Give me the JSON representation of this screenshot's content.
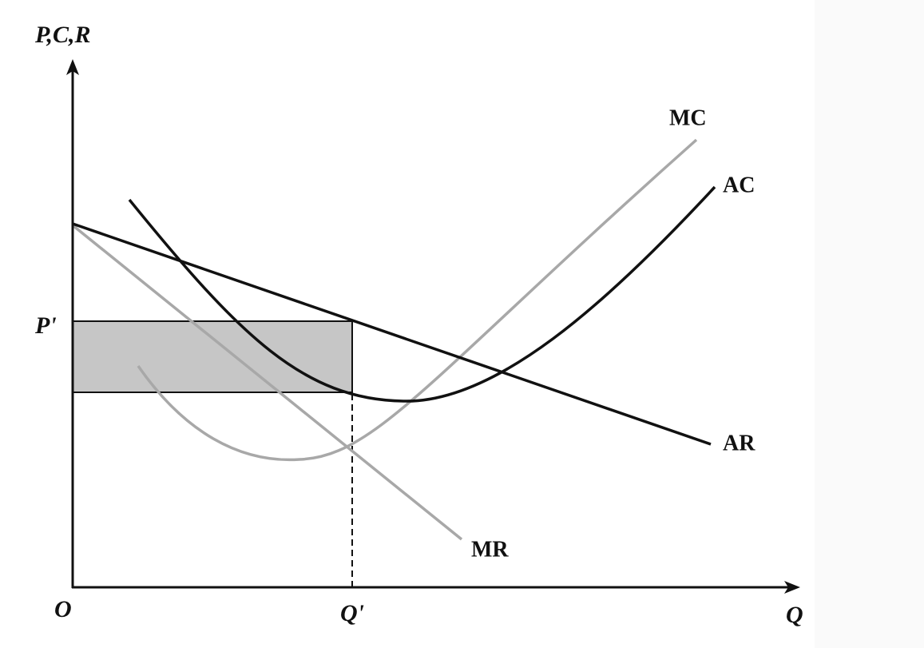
{
  "axes": {
    "y_label": "P,C,R",
    "x_label": "Q",
    "origin": "O"
  },
  "markers": {
    "price": "P'",
    "quantity": "Q'"
  },
  "curves": {
    "mc": "MC",
    "ac": "AC",
    "ar": "AR",
    "mr": "MR"
  }
}
